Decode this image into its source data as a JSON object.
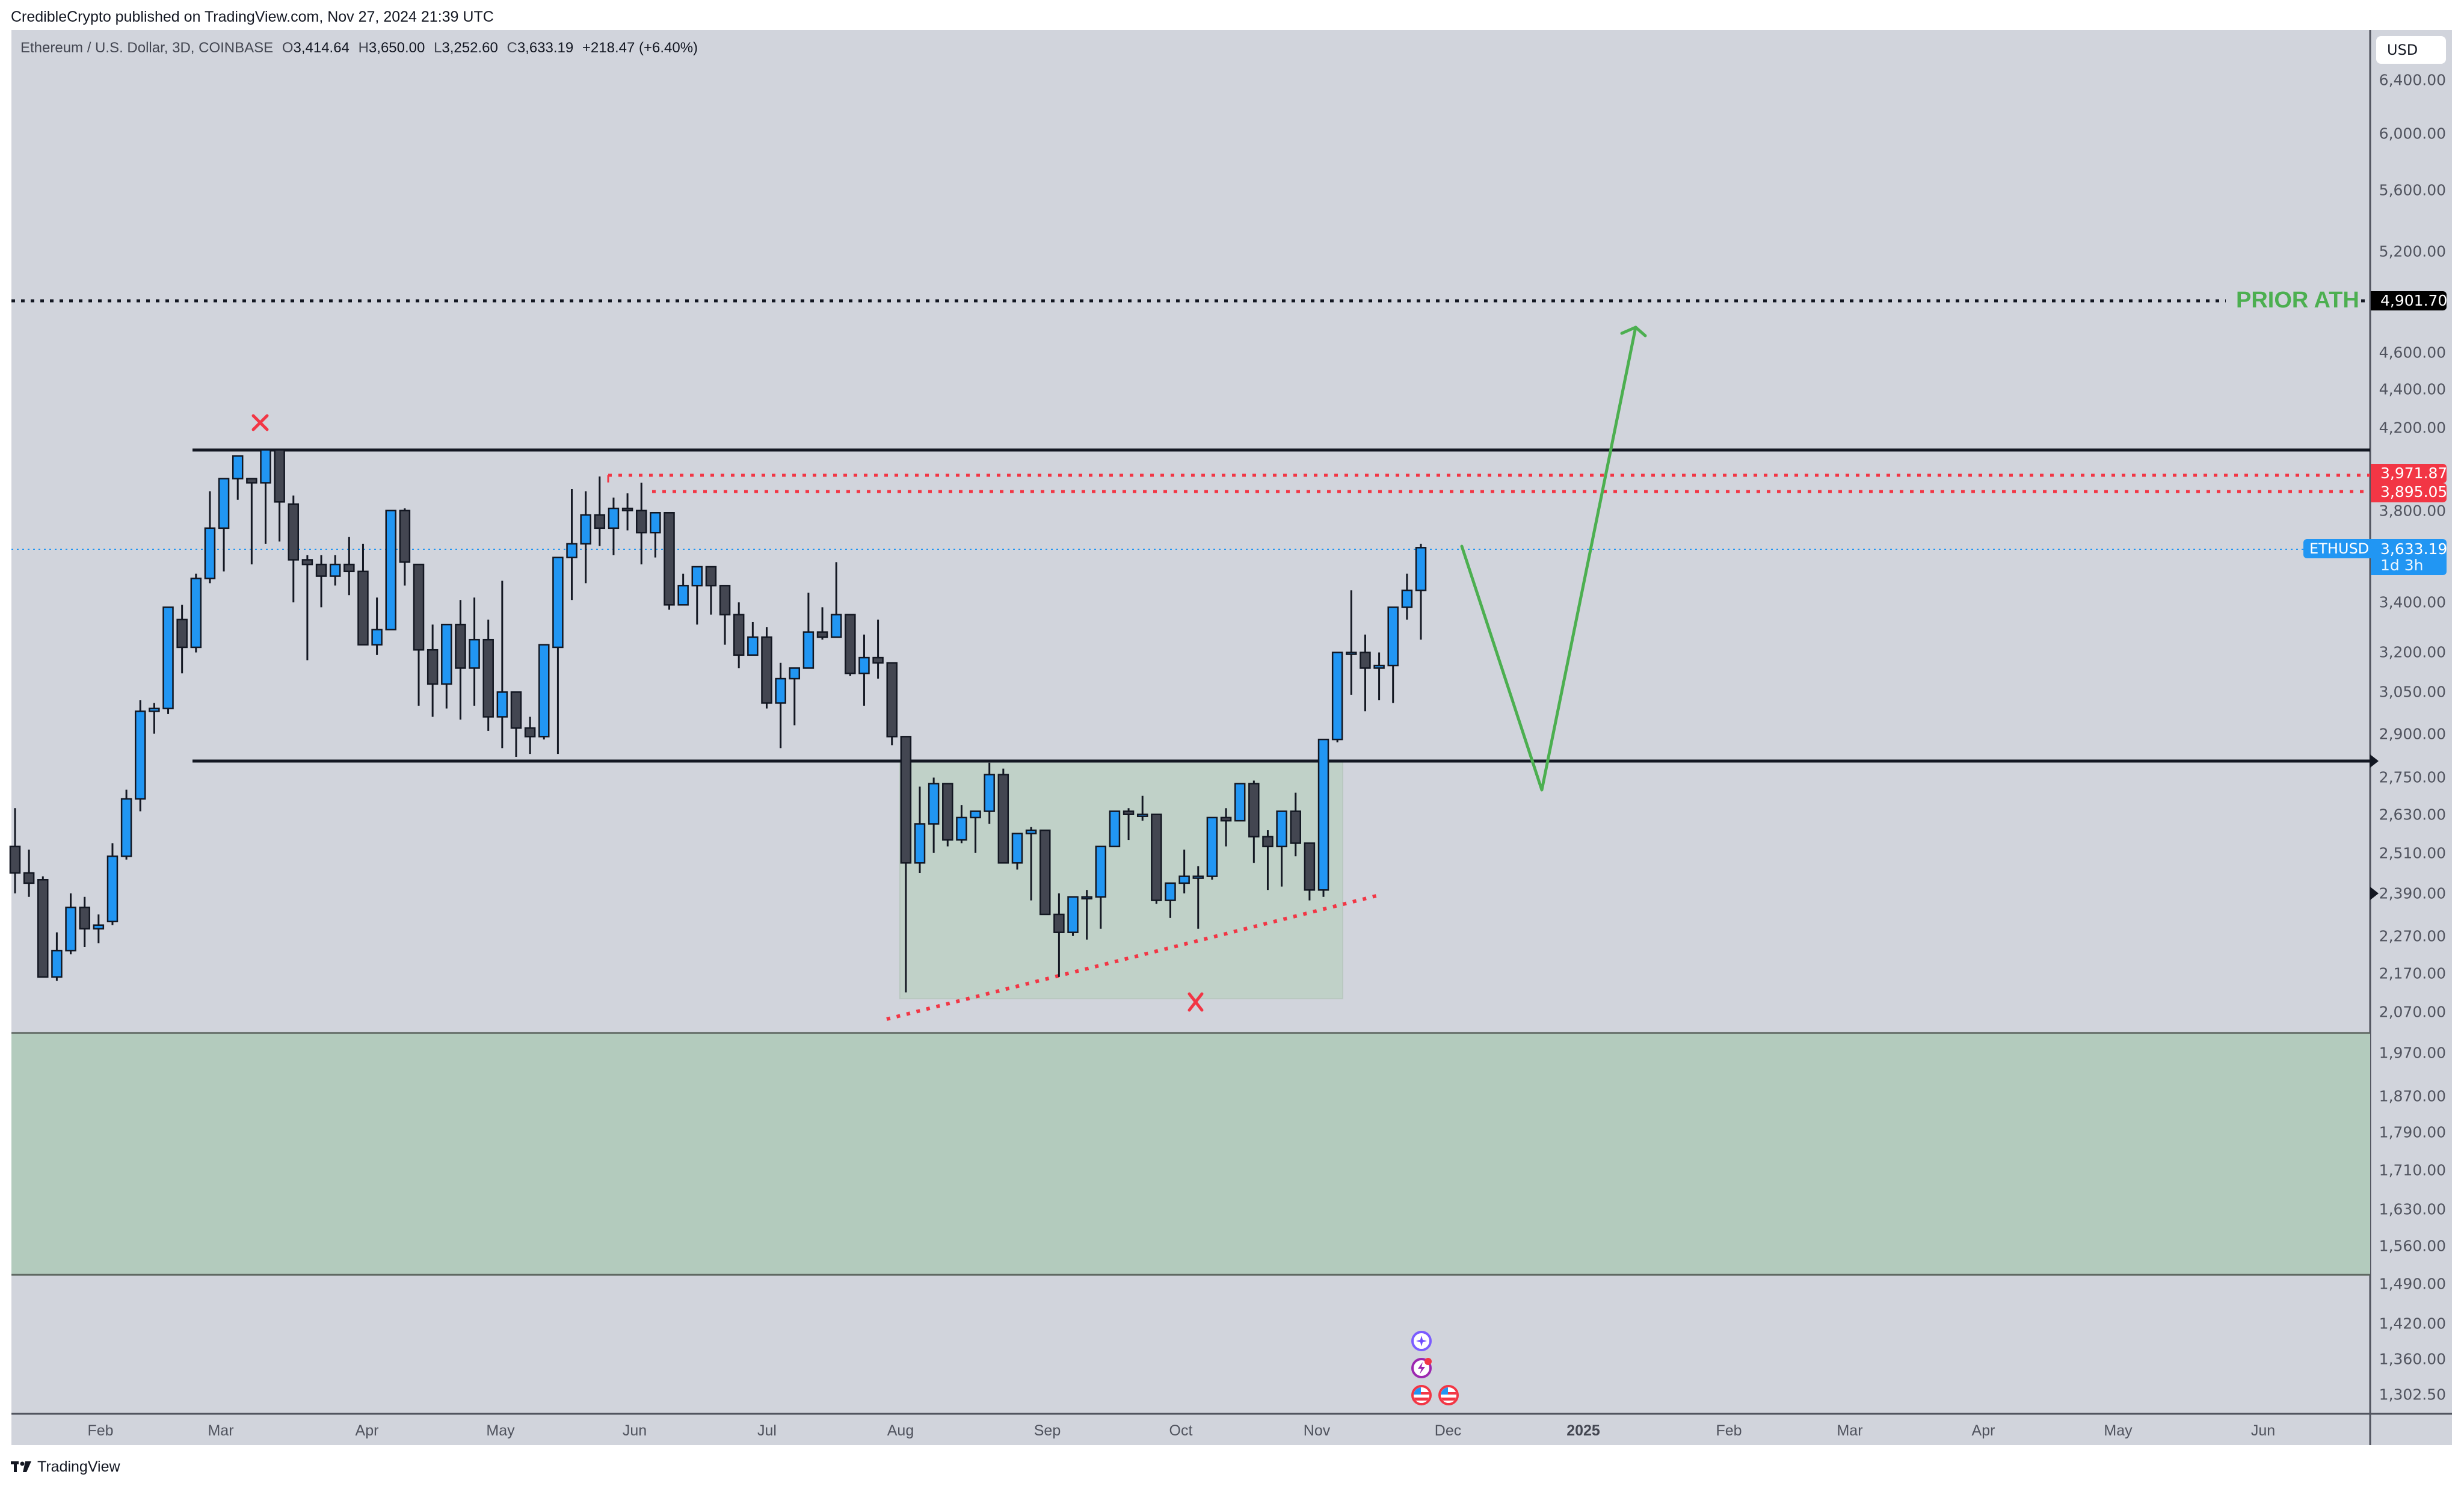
{
  "header": {
    "published": "CredibleCrypto published on TradingView.com, Nov 27, 2024 21:39 UTC"
  },
  "legend": {
    "symbol": "Ethereum / U.S. Dollar, 3D, COINBASE",
    "o_label": "O",
    "o": "3,414.64",
    "h_label": "H",
    "h": "3,650.00",
    "l_label": "L",
    "l": "3,252.60",
    "c_label": "C",
    "c": "3,633.19",
    "change": "+218.47 (+6.40%)"
  },
  "price_axis": {
    "currency_button": "USD",
    "ticks": [
      "6,400.00",
      "6,000.00",
      "5,600.00",
      "5,200.00",
      "4,600.00",
      "4,400.00",
      "4,200.00",
      "3,800.00",
      "3,400.00",
      "3,200.00",
      "3,050.00",
      "2,900.00",
      "2,750.00",
      "2,630.00",
      "2,510.00",
      "2,390.00",
      "2,270.00",
      "2,170.00",
      "2,070.00",
      "1,970.00",
      "1,870.00",
      "1,790.00",
      "1,710.00",
      "1,630.00",
      "1,560.00",
      "1,490.00",
      "1,420.00",
      "1,360.00",
      "1,302.50"
    ],
    "tags": {
      "ath": "4,901.70",
      "red_high": "3,971.87",
      "red_low": "3,895.05",
      "last_price": "3,633.19",
      "countdown": "1d 3h",
      "symbol_tag": "ETHUSD"
    }
  },
  "time_axis": {
    "labels": [
      {
        "text": "Feb",
        "x": 167,
        "bold": false
      },
      {
        "text": "Mar",
        "x": 367,
        "bold": false
      },
      {
        "text": "Apr",
        "x": 610,
        "bold": false
      },
      {
        "text": "May",
        "x": 832,
        "bold": false
      },
      {
        "text": "Jun",
        "x": 1055,
        "bold": false
      },
      {
        "text": "Jul",
        "x": 1275,
        "bold": false
      },
      {
        "text": "Aug",
        "x": 1497,
        "bold": false
      },
      {
        "text": "Sep",
        "x": 1741,
        "bold": false
      },
      {
        "text": "Oct",
        "x": 1963,
        "bold": false
      },
      {
        "text": "Nov",
        "x": 2189,
        "bold": false
      },
      {
        "text": "Dec",
        "x": 2407,
        "bold": false
      },
      {
        "text": "2025",
        "x": 2632,
        "bold": true
      },
      {
        "text": "Feb",
        "x": 2874,
        "bold": false
      },
      {
        "text": "Mar",
        "x": 3075,
        "bold": false
      },
      {
        "text": "Apr",
        "x": 3297,
        "bold": false
      },
      {
        "text": "May",
        "x": 3521,
        "bold": false
      },
      {
        "text": "Jun",
        "x": 3762,
        "bold": false
      }
    ]
  },
  "annotations": {
    "prior_ath_label": "PRIOR ATH",
    "prior_ath_price": 4901.7,
    "range_top": 4090,
    "range_bottom": 2800,
    "red_level_1": 3971.87,
    "red_level_2": 3895.05,
    "demand_zone": [
      1500,
      2020
    ],
    "accumulation_box": [
      2125,
      2800
    ],
    "colors": {
      "up": "#2196f3",
      "down": "#434651",
      "ath_green": "#4caf50",
      "red": "#f23645",
      "zone_green": "#b3cbbd",
      "box_green": "#c0d1c8",
      "bg": "#d1d4dc"
    }
  },
  "footer": {
    "brand": "TradingView"
  },
  "chart_data": {
    "type": "candlestick",
    "title": "Ethereum / U.S. Dollar, 3D, COINBASE",
    "scale": "log",
    "ylim": [
      1302.5,
      6400
    ],
    "x_axis": [
      "Feb",
      "Mar",
      "Apr",
      "May",
      "Jun",
      "Jul",
      "Aug",
      "Sep",
      "Oct",
      "Nov",
      "Dec",
      "2025",
      "Feb",
      "Mar",
      "Apr",
      "May",
      "Jun"
    ],
    "last": {
      "open": 3414.64,
      "high": 3650.0,
      "low": 3252.6,
      "close": 3633.19,
      "change": 218.47,
      "change_pct": 6.4
    },
    "candles": [
      [
        2530,
        2650,
        2390,
        2450
      ],
      [
        2450,
        2520,
        2380,
        2420
      ],
      [
        2430,
        2440,
        2160,
        2160
      ],
      [
        2160,
        2280,
        2150,
        2230
      ],
      [
        2230,
        2390,
        2220,
        2350
      ],
      [
        2350,
        2380,
        2240,
        2290
      ],
      [
        2290,
        2330,
        2250,
        2300
      ],
      [
        2310,
        2540,
        2300,
        2500
      ],
      [
        2500,
        2710,
        2490,
        2680
      ],
      [
        2680,
        3020,
        2640,
        2980
      ],
      [
        2980,
        3010,
        2900,
        2990
      ],
      [
        2990,
        3350,
        2970,
        3380
      ],
      [
        3330,
        3390,
        3120,
        3220
      ],
      [
        3220,
        3520,
        3200,
        3500
      ],
      [
        3500,
        3890,
        3480,
        3720
      ],
      [
        3720,
        3760,
        3530,
        3950
      ],
      [
        3950,
        4050,
        3850,
        4060
      ],
      [
        3950,
        3840,
        3560,
        3930
      ],
      [
        3930,
        4070,
        3650,
        4090
      ],
      [
        4090,
        4090,
        3660,
        3840
      ],
      [
        3830,
        3870,
        3400,
        3580
      ],
      [
        3580,
        3600,
        3170,
        3560
      ],
      [
        3560,
        3600,
        3380,
        3510
      ],
      [
        3510,
        3600,
        3470,
        3560
      ],
      [
        3560,
        3680,
        3430,
        3530
      ],
      [
        3530,
        3650,
        3250,
        3230
      ],
      [
        3230,
        3420,
        3190,
        3290
      ],
      [
        3290,
        3790,
        3290,
        3800
      ],
      [
        3800,
        3810,
        3470,
        3570
      ],
      [
        3560,
        3480,
        3000,
        3210
      ],
      [
        3210,
        3310,
        2960,
        3080
      ],
      [
        3080,
        3120,
        2990,
        3310
      ],
      [
        3310,
        3410,
        2950,
        3140
      ],
      [
        3140,
        3420,
        3000,
        3250
      ],
      [
        3250,
        3330,
        2910,
        2960
      ],
      [
        2960,
        3490,
        2850,
        3050
      ],
      [
        3050,
        2940,
        2820,
        2920
      ],
      [
        2920,
        2960,
        2830,
        2890
      ],
      [
        2890,
        3220,
        2880,
        3230
      ],
      [
        3220,
        3260,
        2830,
        3590
      ],
      [
        3590,
        3900,
        3410,
        3650
      ],
      [
        3650,
        3890,
        3480,
        3780
      ],
      [
        3780,
        3960,
        3640,
        3720
      ],
      [
        3720,
        3860,
        3600,
        3810
      ],
      [
        3810,
        3880,
        3710,
        3800
      ],
      [
        3800,
        3930,
        3560,
        3700
      ],
      [
        3700,
        3780,
        3590,
        3790
      ],
      [
        3790,
        3750,
        3370,
        3390
      ],
      [
        3390,
        3520,
        3390,
        3470
      ],
      [
        3470,
        3450,
        3310,
        3550
      ],
      [
        3550,
        3520,
        3350,
        3470
      ],
      [
        3470,
        3380,
        3230,
        3350
      ],
      [
        3350,
        3400,
        3140,
        3190
      ],
      [
        3190,
        3320,
        3190,
        3260
      ],
      [
        3260,
        3300,
        2990,
        3010
      ],
      [
        3010,
        3160,
        2850,
        3100
      ],
      [
        3100,
        3140,
        2930,
        3140
      ],
      [
        3140,
        3440,
        3140,
        3280
      ],
      [
        3280,
        3380,
        3250,
        3260
      ],
      [
        3260,
        3570,
        3260,
        3350
      ],
      [
        3350,
        3340,
        3110,
        3120
      ],
      [
        3120,
        3270,
        3000,
        3180
      ],
      [
        3180,
        3330,
        3100,
        3160
      ],
      [
        3160,
        3120,
        2860,
        2890
      ],
      [
        2890,
        2840,
        2120,
        2480
      ],
      [
        2480,
        2720,
        2450,
        2600
      ],
      [
        2600,
        2750,
        2510,
        2730
      ],
      [
        2730,
        2720,
        2530,
        2550
      ],
      [
        2550,
        2660,
        2540,
        2620
      ],
      [
        2620,
        2640,
        2510,
        2640
      ],
      [
        2640,
        2800,
        2600,
        2760
      ],
      [
        2760,
        2780,
        2480,
        2480
      ],
      [
        2480,
        2540,
        2460,
        2570
      ],
      [
        2570,
        2590,
        2370,
        2580
      ],
      [
        2580,
        2580,
        2330,
        2330
      ],
      [
        2330,
        2390,
        2160,
        2280
      ],
      [
        2280,
        2380,
        2270,
        2380
      ],
      [
        2380,
        2400,
        2260,
        2380
      ],
      [
        2380,
        2510,
        2290,
        2530
      ],
      [
        2530,
        2640,
        2530,
        2640
      ],
      [
        2640,
        2650,
        2550,
        2630
      ],
      [
        2630,
        2690,
        2610,
        2630
      ],
      [
        2630,
        2620,
        2360,
        2370
      ],
      [
        2370,
        2420,
        2320,
        2420
      ],
      [
        2420,
        2520,
        2390,
        2440
      ],
      [
        2440,
        2470,
        2290,
        2440
      ],
      [
        2440,
        2600,
        2430,
        2620
      ],
      [
        2620,
        2650,
        2530,
        2610
      ],
      [
        2610,
        2720,
        2610,
        2730
      ],
      [
        2730,
        2740,
        2480,
        2560
      ],
      [
        2560,
        2580,
        2400,
        2530
      ],
      [
        2530,
        2620,
        2410,
        2640
      ],
      [
        2640,
        2700,
        2500,
        2540
      ],
      [
        2540,
        2540,
        2370,
        2400
      ],
      [
        2400,
        2880,
        2380,
        2880
      ],
      [
        2880,
        3190,
        2870,
        3200
      ],
      [
        3200,
        3450,
        3040,
        3200
      ],
      [
        3200,
        3270,
        2980,
        3140
      ],
      [
        3140,
        3200,
        3020,
        3150
      ],
      [
        3150,
        3380,
        3010,
        3380
      ],
      [
        3380,
        3520,
        3330,
        3450
      ],
      [
        3450,
        3650,
        3250,
        3633
      ]
    ]
  }
}
